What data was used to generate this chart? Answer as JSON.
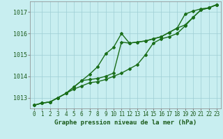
{
  "xlabel": "Graphe pression niveau de la mer (hPa)",
  "x": [
    0,
    1,
    2,
    3,
    4,
    5,
    6,
    7,
    8,
    9,
    10,
    11,
    12,
    13,
    14,
    15,
    16,
    17,
    18,
    19,
    20,
    21,
    22,
    23
  ],
  "line1": [
    1012.65,
    1012.75,
    1012.8,
    1013.0,
    1013.2,
    1013.4,
    1013.55,
    1013.7,
    1013.75,
    1013.85,
    1014.0,
    1014.15,
    1014.35,
    1014.55,
    1015.0,
    1015.55,
    1015.75,
    1015.85,
    1016.0,
    1016.35,
    1016.75,
    1017.1,
    1017.2,
    1017.35
  ],
  "line2": [
    1012.65,
    1012.75,
    1012.8,
    1013.0,
    1013.2,
    1013.5,
    1013.8,
    1014.1,
    1014.45,
    1015.05,
    1015.35,
    1016.0,
    1015.55,
    1015.6,
    1015.65,
    1015.75,
    1015.85,
    1016.05,
    1016.25,
    1016.4,
    1016.75,
    1017.1,
    1017.2,
    1017.35
  ],
  "line3": [
    1012.65,
    1012.75,
    1012.8,
    1013.0,
    1013.2,
    1013.5,
    1013.8,
    1013.85,
    1013.9,
    1014.0,
    1014.15,
    1015.6,
    1015.55,
    1015.6,
    1015.65,
    1015.75,
    1015.85,
    1016.05,
    1016.25,
    1016.9,
    1017.05,
    1017.15,
    1017.2,
    1017.35
  ],
  "line_color": "#1a6e1a",
  "background_color": "#c8eef0",
  "grid_color": "#9ecdd4",
  "text_color": "#1a5a1a",
  "ylim": [
    1012.5,
    1017.5
  ],
  "yticks": [
    1013,
    1014,
    1015,
    1016,
    1017
  ],
  "xtick_labels": [
    "0",
    "1",
    "2",
    "3",
    "4",
    "5",
    "6",
    "7",
    "8",
    "9",
    "10",
    "11",
    "12",
    "13",
    "14",
    "15",
    "16",
    "17",
    "18",
    "19",
    "20",
    "21",
    "22",
    "23"
  ],
  "marker": "D",
  "marker_size": 2,
  "line_width": 1.0
}
